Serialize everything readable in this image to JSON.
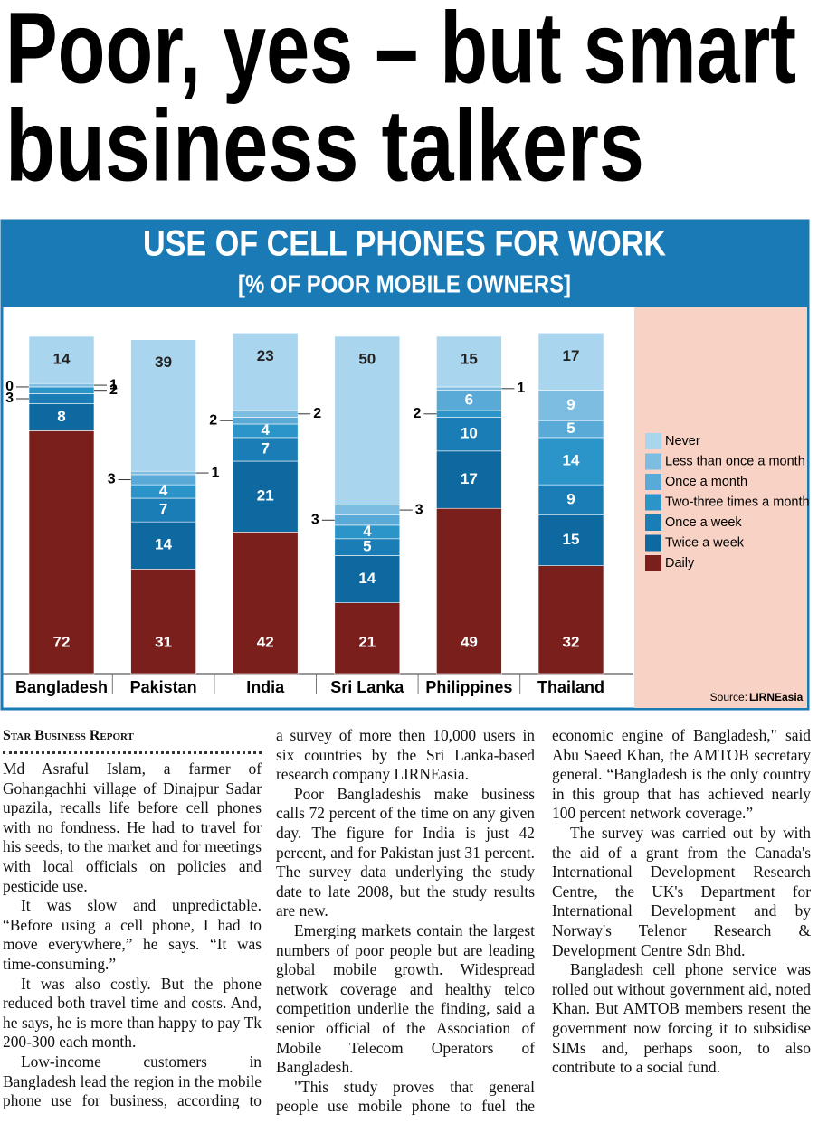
{
  "headline": {
    "lines": [
      "Poor, yes – but smart",
      "business talkers"
    ]
  },
  "chart_data": {
    "type": "bar",
    "stacked": true,
    "title": "USE OF CELL PHONES FOR WORK",
    "subtitle": "[% OF POOR MOBILE OWNERS]",
    "categories": [
      "Bangladesh",
      "Pakistan",
      "India",
      "Sri Lanka",
      "Philippines",
      "Thailand"
    ],
    "series": [
      {
        "name": "Daily",
        "color": "#7a1f1c",
        "values": [
          72,
          31,
          42,
          21,
          49,
          32
        ]
      },
      {
        "name": "Twice a week",
        "color": "#0e69a1",
        "values": [
          8,
          14,
          21,
          14,
          17,
          15
        ]
      },
      {
        "name": "Once a week",
        "color": "#1a7db5",
        "values": [
          3,
          7,
          7,
          5,
          10,
          9
        ]
      },
      {
        "name": "Two-three times a month",
        "color": "#2b95c9",
        "values": [
          2,
          4,
          4,
          4,
          2,
          14
        ]
      },
      {
        "name": "Once a month",
        "color": "#5aaad7",
        "values": [
          0,
          3,
          2,
          3,
          6,
          5
        ]
      },
      {
        "name": "Less than once a month",
        "color": "#7dbde2",
        "values": [
          1,
          1,
          2,
          3,
          1,
          9
        ]
      },
      {
        "name": "Never",
        "color": "#a9d5ee",
        "values": [
          14,
          39,
          23,
          50,
          15,
          17
        ]
      }
    ],
    "legend": "right",
    "source_label": "Source:",
    "source": "LIRNEasia"
  },
  "article": {
    "byline": "Star Business Report",
    "columns": [
      [
        "Md Asraful Islam, a farmer of Gohangachhi village of Dinajpur Sadar upazila, recalls life before cell phones with no fondness. He had to travel for his seeds, to the market and for meetings with local officials on policies and pesticide use.",
        "It was slow and unpredictable. “Before using a cell phone, I had to move everywhere,” he says. “It was time-consuming.”",
        "It was also costly. But the phone reduced both travel time and costs. And, he says, he is more than happy to pay Tk 200-300 each month.",
        "Low-income customers in Bangladesh lead the region in the mobile phone use for business, according to"
      ],
      [
        "a survey of more then 10,000 users in six countries by the Sri Lanka-based research company LIRNEasia.",
        "Poor Bangladeshis make business calls 72 percent of the time on any given day. The figure for India is just 42 percent, and for Pakistan just 31 percent. The survey data underlying the study date to late 2008, but the study results are new.",
        "Emerging markets contain the largest numbers of poor people but are leading global mobile growth. Widespread network coverage and healthy telco competition underlie the finding, said a senior official of the Association of Mobile Telecom Operators of Bangladesh.",
        "\"This study proves that general people use mobile phone to fuel the"
      ],
      [
        "economic engine of Bangladesh,\" said Abu Saeed Khan, the AMTOB secretary general. “Bangladesh is the only country in this group that has achieved nearly 100 percent network coverage.”",
        "The survey was carried out by with the aid of a grant from the Canada's International Development Research Centre, the UK's Department for International Development and by Norway's Telenor Research & Development Centre Sdn Bhd.",
        "Bangladesh cell phone service was rolled out without government aid, noted Khan. But AMTOB members resent the government now forcing it to subsidise SIMs and, perhaps soon, to also contribute to a social fund."
      ]
    ]
  }
}
